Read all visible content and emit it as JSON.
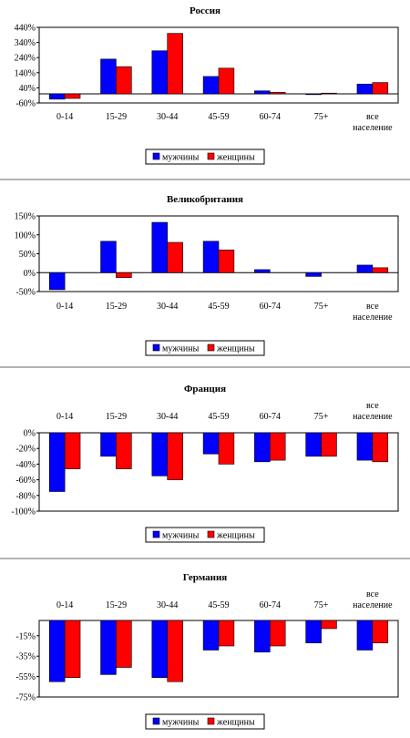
{
  "legend": [
    "мужчины",
    "женщины"
  ],
  "colors": {
    "men": "#0000FF",
    "women": "#FF0000"
  },
  "chart_data": [
    {
      "type": "bar",
      "title": "Россия",
      "categories": [
        "0-14",
        "15-29",
        "30-44",
        "45-59",
        "60-74",
        "75+",
        "все население"
      ],
      "series": [
        {
          "name": "мужчины",
          "values": [
            -35,
            230,
            285,
            115,
            20,
            -5,
            65
          ]
        },
        {
          "name": "женщины",
          "values": [
            -30,
            180,
            400,
            170,
            10,
            5,
            75
          ]
        }
      ],
      "ylim": [
        -60,
        440
      ],
      "yticks": [
        -60,
        40,
        140,
        240,
        340,
        440
      ],
      "yticklabels": [
        "-60%",
        "40%",
        "140%",
        "240%",
        "340%",
        "440%"
      ],
      "cat_labels_pos": "bottom",
      "legend_position": "bottom"
    },
    {
      "type": "bar",
      "title": "Великобритания",
      "categories": [
        "0-14",
        "15-29",
        "30-44",
        "45-59",
        "60-74",
        "75+",
        "все население"
      ],
      "series": [
        {
          "name": "мужчины",
          "values": [
            -45,
            83,
            133,
            83,
            8,
            -10,
            20
          ]
        },
        {
          "name": "женщины",
          "values": [
            0,
            -13,
            80,
            60,
            0,
            0,
            13
          ]
        }
      ],
      "ylim": [
        -50,
        150
      ],
      "yticks": [
        -50,
        0,
        50,
        100,
        150
      ],
      "yticklabels": [
        "-50%",
        "0%",
        "50%",
        "100%",
        "150%"
      ],
      "cat_labels_pos": "bottom",
      "legend_position": "bottom"
    },
    {
      "type": "bar",
      "title": "Франция",
      "categories": [
        "0-14",
        "15-29",
        "30-44",
        "45-59",
        "60-74",
        "75+",
        "все население"
      ],
      "series": [
        {
          "name": "мужчины",
          "values": [
            -75,
            -30,
            -55,
            -27,
            -37,
            -30,
            -35
          ]
        },
        {
          "name": "женщины",
          "values": [
            -46,
            -46,
            -60,
            -40,
            -35,
            -30,
            -37
          ]
        }
      ],
      "ylim": [
        -100,
        0
      ],
      "yticks": [
        -100,
        -80,
        -60,
        -40,
        -20,
        0
      ],
      "yticklabels": [
        "-100%",
        "-80%",
        "-60%",
        "-40%",
        "-20%",
        "0%"
      ],
      "cat_labels_pos": "top",
      "legend_position": "bottom"
    },
    {
      "type": "bar",
      "title": "Германия",
      "categories": [
        "0-14",
        "15-29",
        "30-44",
        "45-59",
        "60-74",
        "75+",
        "все население"
      ],
      "series": [
        {
          "name": "мужчины",
          "values": [
            -60,
            -53,
            -56,
            -29,
            -31,
            -22,
            -29
          ]
        },
        {
          "name": "женщины",
          "values": [
            -56,
            -46,
            -60,
            -25,
            -25,
            -8,
            -22
          ]
        }
      ],
      "ylim": [
        -75,
        0
      ],
      "yticks": [
        -75,
        -55,
        -35,
        -15
      ],
      "yticklabels": [
        "-75%",
        "-55%",
        "-35%",
        "-15%"
      ],
      "cat_labels_pos": "top",
      "legend_position": "bottom"
    }
  ]
}
